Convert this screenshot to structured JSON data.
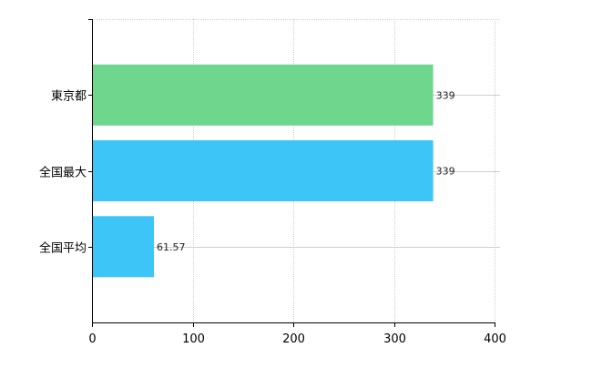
{
  "chart_data": {
    "type": "bar",
    "orientation": "horizontal",
    "categories": [
      "東京都",
      "全国最大",
      "全国平均"
    ],
    "values": [
      339,
      339,
      61.57
    ],
    "value_labels": [
      "339",
      "339",
      "61.57"
    ],
    "bar_colors": [
      "#6fd68d",
      "#3dc5f7",
      "#3dc5f7"
    ],
    "xlim": [
      0,
      400
    ],
    "x_ticks": [
      0,
      100,
      200,
      300,
      400
    ],
    "x_tick_labels": [
      "0",
      "100",
      "200",
      "300",
      "400"
    ],
    "grid": true,
    "title": "",
    "xlabel": "",
    "ylabel": ""
  }
}
